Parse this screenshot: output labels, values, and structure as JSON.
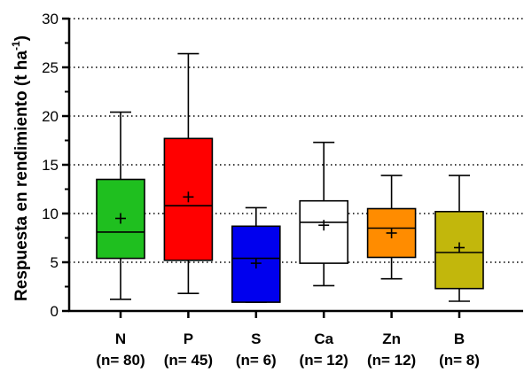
{
  "chart_data": {
    "type": "boxplot",
    "ylabel": "Respuesta en rendimiento (t ha",
    "ylabel_unit_exponent": "-1",
    "ylabel_close": ")",
    "ylim": [
      0,
      30
    ],
    "yticks": [
      0,
      5,
      10,
      15,
      20,
      25,
      30
    ],
    "grid": "horizontal-dotted",
    "categories": [
      {
        "label": "N",
        "n_label": "(n= 80)",
        "color": "#1fbf1f",
        "min": 1.2,
        "q1": 5.4,
        "median": 8.1,
        "q3": 13.5,
        "max": 20.4,
        "mean": 9.5
      },
      {
        "label": "P",
        "n_label": "(n= 45)",
        "color": "#ff0000",
        "min": 1.8,
        "q1": 5.2,
        "median": 10.8,
        "q3": 17.7,
        "max": 26.4,
        "mean": 11.7
      },
      {
        "label": "S",
        "n_label": "(n= 6)",
        "color": "#0000ee",
        "min": 0.9,
        "q1": 0.9,
        "median": 5.4,
        "q3": 8.7,
        "max": 10.6,
        "mean": 4.9
      },
      {
        "label": "Ca",
        "n_label": "(n= 12)",
        "color": "#ffffff",
        "min": 2.6,
        "q1": 4.9,
        "median": 9.1,
        "q3": 11.3,
        "max": 17.3,
        "mean": 8.8
      },
      {
        "label": "Zn",
        "n_label": "(n= 12)",
        "color": "#ff8c00",
        "min": 3.3,
        "q1": 5.5,
        "median": 8.5,
        "q3": 10.5,
        "max": 13.9,
        "mean": 8.0
      },
      {
        "label": "B",
        "n_label": "(n= 8)",
        "color": "#c2b70c",
        "min": 1.0,
        "q1": 2.3,
        "median": 6.0,
        "q3": 10.2,
        "max": 13.9,
        "mean": 6.5
      }
    ]
  }
}
